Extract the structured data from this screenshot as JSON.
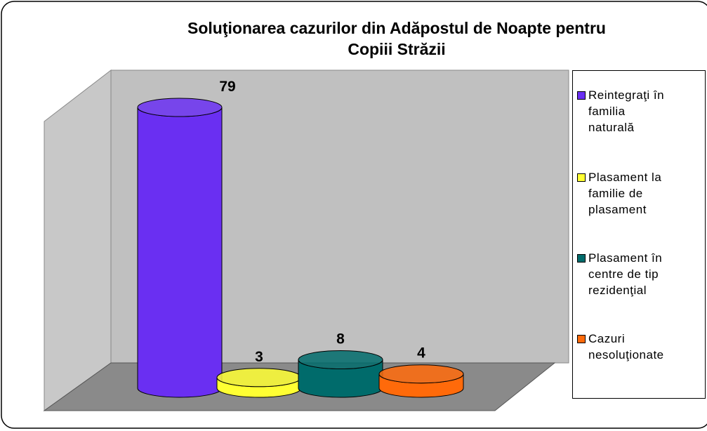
{
  "chart_data": {
    "type": "bar3d",
    "title": [
      "Soluţionarea cazurilor din Adăpostul de Noapte pentru",
      "Copiii Străzii"
    ],
    "series": [
      {
        "name": "Reintegraţi în familia naturală",
        "color": "#6a2ff2",
        "values": [
          79
        ]
      },
      {
        "name": "Plasament la familie de plasament",
        "color": "#ffff33",
        "values": [
          3
        ]
      },
      {
        "name": "Plasament în centre de tip rezidenţial",
        "color": "#006b6b",
        "values": [
          8
        ]
      },
      {
        "name": "Cazuri nesoluţionate",
        "color": "#ff6a0a",
        "values": [
          4
        ]
      }
    ],
    "legend": "right"
  }
}
